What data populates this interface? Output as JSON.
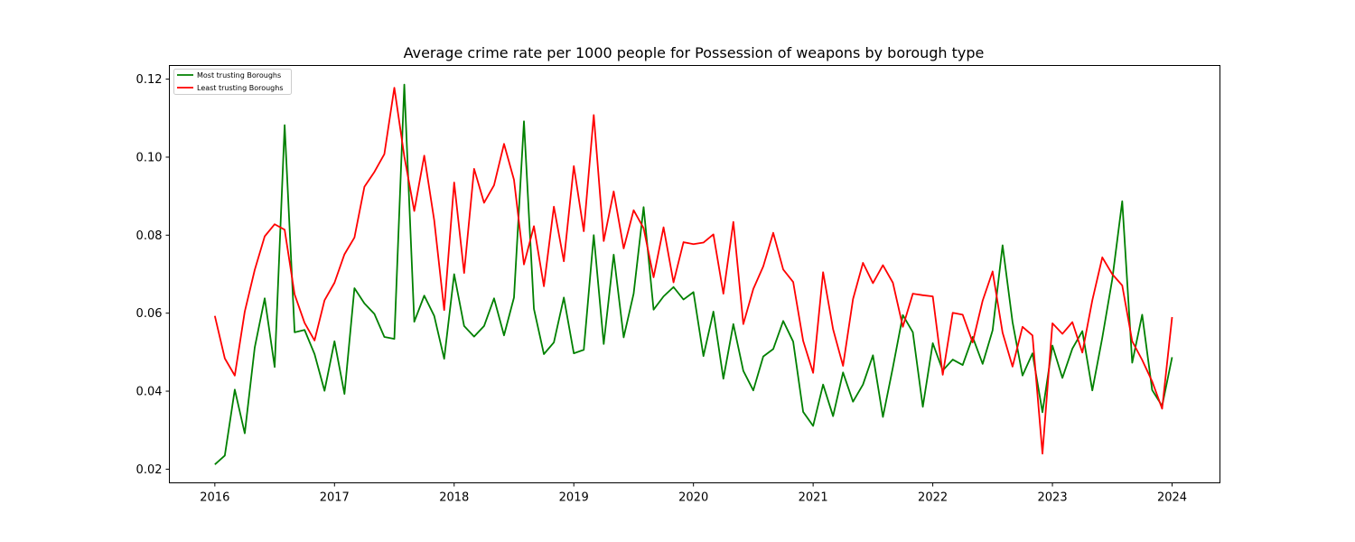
{
  "chart_data": {
    "type": "line",
    "title": "Average crime rate per 1000 people for Possession of weapons by borough type",
    "xlabel": "",
    "ylabel": "",
    "xlim": [
      2015.62,
      2024.4
    ],
    "ylim": [
      0.0165,
      0.1235
    ],
    "xticks": [
      2016,
      2017,
      2018,
      2019,
      2020,
      2021,
      2022,
      2023,
      2024
    ],
    "yticks": [
      0.02,
      0.04,
      0.06,
      0.08,
      0.1,
      0.12
    ],
    "ytick_labels": [
      "0.02",
      "0.04",
      "0.06",
      "0.08",
      "0.10",
      "0.12"
    ],
    "grid": false,
    "legend_position": "top-left",
    "x_start_year": 2016,
    "x_step_months": 1,
    "series": [
      {
        "name": "Most trusting Boroughs",
        "color": "#008000",
        "values": [
          0.0212,
          0.0235,
          0.0404,
          0.0292,
          0.0512,
          0.0638,
          0.0462,
          0.1082,
          0.0551,
          0.0557,
          0.0495,
          0.0401,
          0.0528,
          0.0393,
          0.0664,
          0.0625,
          0.0598,
          0.0539,
          0.0534,
          0.1186,
          0.0578,
          0.0645,
          0.0593,
          0.0483,
          0.07,
          0.0567,
          0.054,
          0.0567,
          0.0638,
          0.0543,
          0.064,
          0.1092,
          0.0611,
          0.0495,
          0.0525,
          0.064,
          0.0497,
          0.0506,
          0.08,
          0.0521,
          0.075,
          0.0538,
          0.065,
          0.0872,
          0.0609,
          0.0643,
          0.0667,
          0.0635,
          0.0654,
          0.049,
          0.0604,
          0.0432,
          0.0572,
          0.0452,
          0.0402,
          0.0489,
          0.0508,
          0.058,
          0.0527,
          0.0347,
          0.0311,
          0.0417,
          0.0336,
          0.0448,
          0.0373,
          0.0417,
          0.0492,
          0.0334,
          0.0461,
          0.0595,
          0.0551,
          0.036,
          0.0523,
          0.0453,
          0.0481,
          0.0467,
          0.0539,
          0.047,
          0.0556,
          0.0774,
          0.0577,
          0.044,
          0.0497,
          0.0346,
          0.0517,
          0.0434,
          0.0509,
          0.0554,
          0.0402,
          0.0537,
          0.0687,
          0.0887,
          0.0473,
          0.0596,
          0.0403,
          0.0362,
          0.0487
        ]
      },
      {
        "name": "Least trusting Boroughs",
        "color": "#ff0000",
        "values": [
          0.0593,
          0.0484,
          0.044,
          0.0604,
          0.0711,
          0.0797,
          0.0828,
          0.0814,
          0.0648,
          0.0575,
          0.053,
          0.0633,
          0.0678,
          0.0751,
          0.0794,
          0.0924,
          0.0962,
          0.1008,
          0.1178,
          0.1002,
          0.0862,
          0.1004,
          0.0838,
          0.0608,
          0.0935,
          0.0703,
          0.097,
          0.0883,
          0.0928,
          0.1034,
          0.0942,
          0.0725,
          0.0823,
          0.0669,
          0.0873,
          0.0733,
          0.0977,
          0.081,
          0.1108,
          0.0785,
          0.0912,
          0.0766,
          0.0864,
          0.0818,
          0.0692,
          0.082,
          0.0679,
          0.0782,
          0.0777,
          0.0781,
          0.0802,
          0.065,
          0.0834,
          0.0572,
          0.0662,
          0.072,
          0.0806,
          0.0712,
          0.068,
          0.0529,
          0.0447,
          0.0705,
          0.0559,
          0.0465,
          0.0636,
          0.0729,
          0.0677,
          0.0723,
          0.0678,
          0.0565,
          0.065,
          0.0646,
          0.0643,
          0.0442,
          0.0601,
          0.0596,
          0.0525,
          0.0632,
          0.0707,
          0.055,
          0.0463,
          0.0565,
          0.0543,
          0.024,
          0.0574,
          0.0547,
          0.0577,
          0.0499,
          0.0633,
          0.0743,
          0.07,
          0.0671,
          0.0528,
          0.048,
          0.0425,
          0.0355,
          0.059
        ]
      }
    ]
  }
}
